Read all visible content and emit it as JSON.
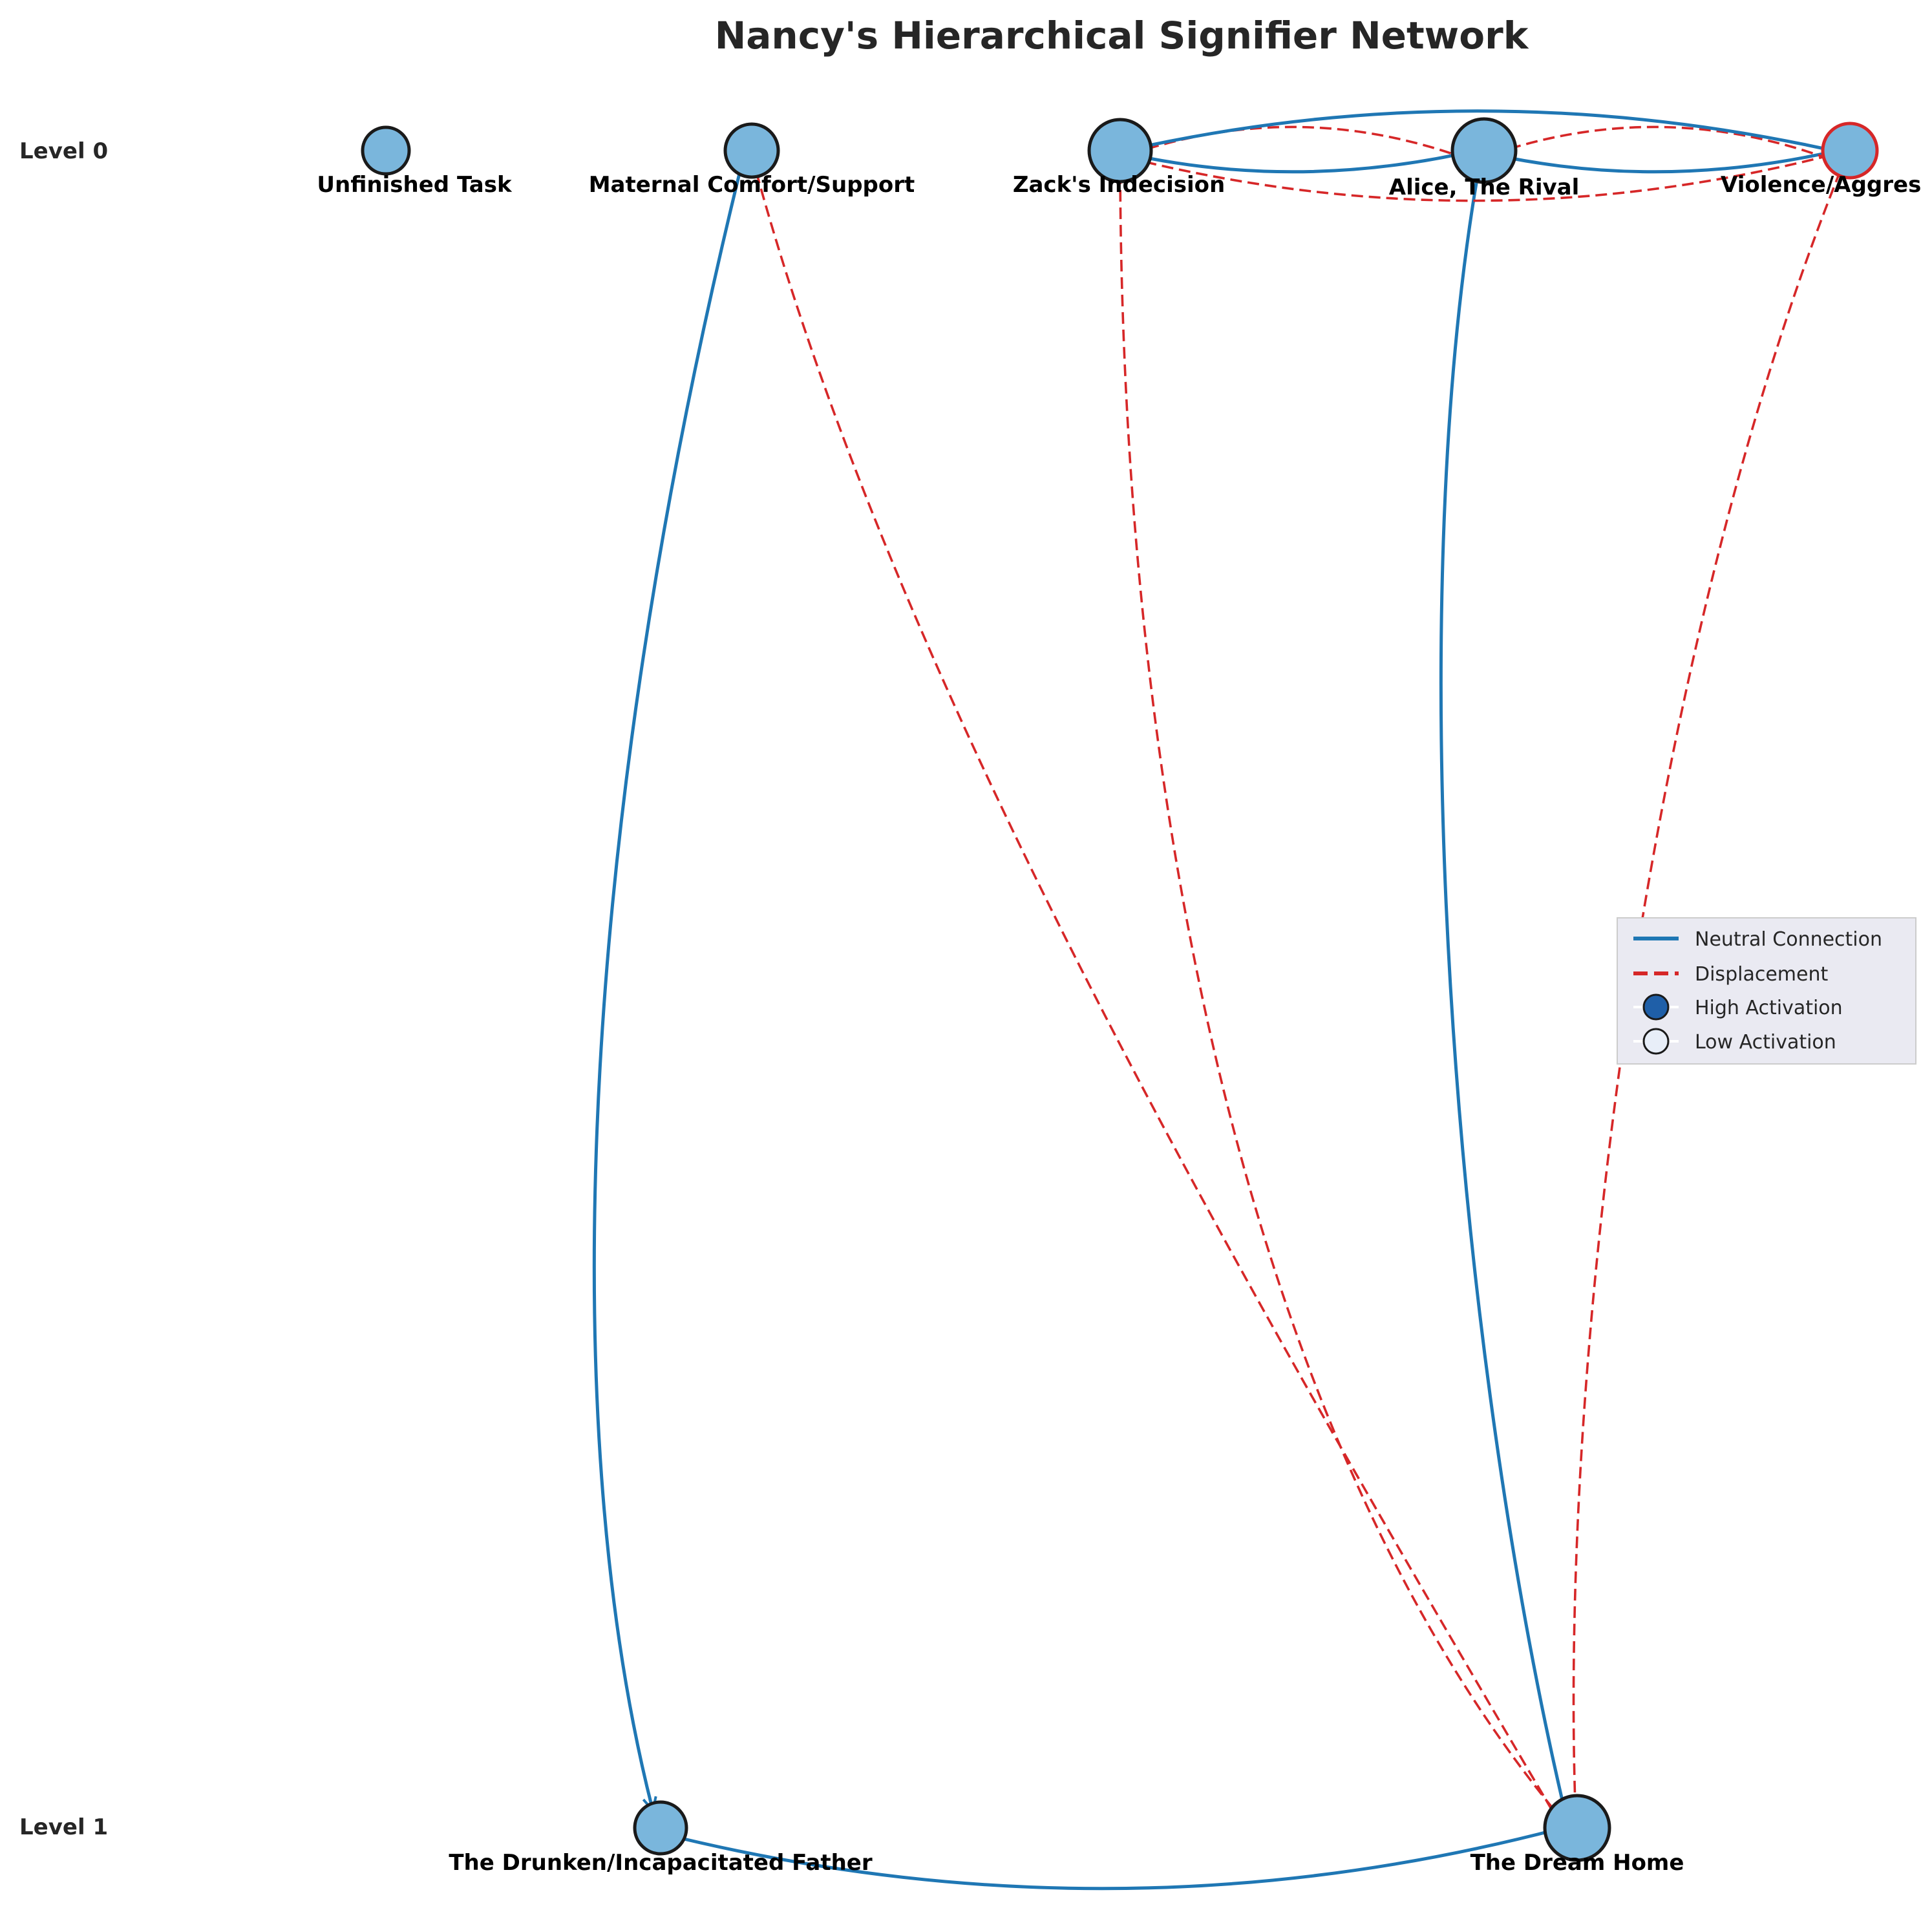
{
  "title": "Nancy's Hierarchical Signifier Network",
  "levels": [
    "Level 0",
    "Level 1"
  ],
  "colors": {
    "neutral": "#1f77b4",
    "displacement": "#d62728",
    "node_fill": "#7ab6dc",
    "node_stroke": "#1a1a1a",
    "high_activation": "#1f5fa8",
    "low_activation": "#e8eef8"
  },
  "nodes": [
    {
      "id": "unfinished",
      "label": "Unfinished Task",
      "level": 0
    },
    {
      "id": "maternal",
      "label": "Maternal Comfort/Support",
      "level": 0
    },
    {
      "id": "zack",
      "label": "Zack's Indecision",
      "level": 0
    },
    {
      "id": "alice",
      "label": "Alice, The Rival",
      "level": 0
    },
    {
      "id": "violence",
      "label": "Violence/Aggres",
      "level": 0,
      "stroke": "displacement"
    },
    {
      "id": "father",
      "label": "The Drunken/Incapacitated Father",
      "level": 1
    },
    {
      "id": "home",
      "label": "The Dream Home",
      "level": 1
    }
  ],
  "edges": [
    {
      "from": "maternal",
      "to": "father",
      "type": "neutral"
    },
    {
      "from": "maternal",
      "to": "home",
      "type": "displacement"
    },
    {
      "from": "zack",
      "to": "home",
      "type": "displacement"
    },
    {
      "from": "alice",
      "to": "home",
      "type": "neutral"
    },
    {
      "from": "violence",
      "to": "home",
      "type": "displacement"
    },
    {
      "from": "zack",
      "to": "alice",
      "type": "neutral"
    },
    {
      "from": "alice",
      "to": "zack",
      "type": "displacement"
    },
    {
      "from": "alice",
      "to": "violence",
      "type": "neutral"
    },
    {
      "from": "violence",
      "to": "alice",
      "type": "displacement"
    },
    {
      "from": "violence",
      "to": "zack",
      "type": "neutral"
    },
    {
      "from": "zack",
      "to": "violence",
      "type": "displacement"
    },
    {
      "from": "father",
      "to": "home",
      "type": "neutral"
    }
  ],
  "legend": {
    "items": [
      {
        "label": "Neutral Connection",
        "kind": "neutral"
      },
      {
        "label": "Displacement",
        "kind": "displacement"
      },
      {
        "label": "High Activation",
        "kind": "high"
      },
      {
        "label": "Low Activation",
        "kind": "low"
      }
    ]
  }
}
